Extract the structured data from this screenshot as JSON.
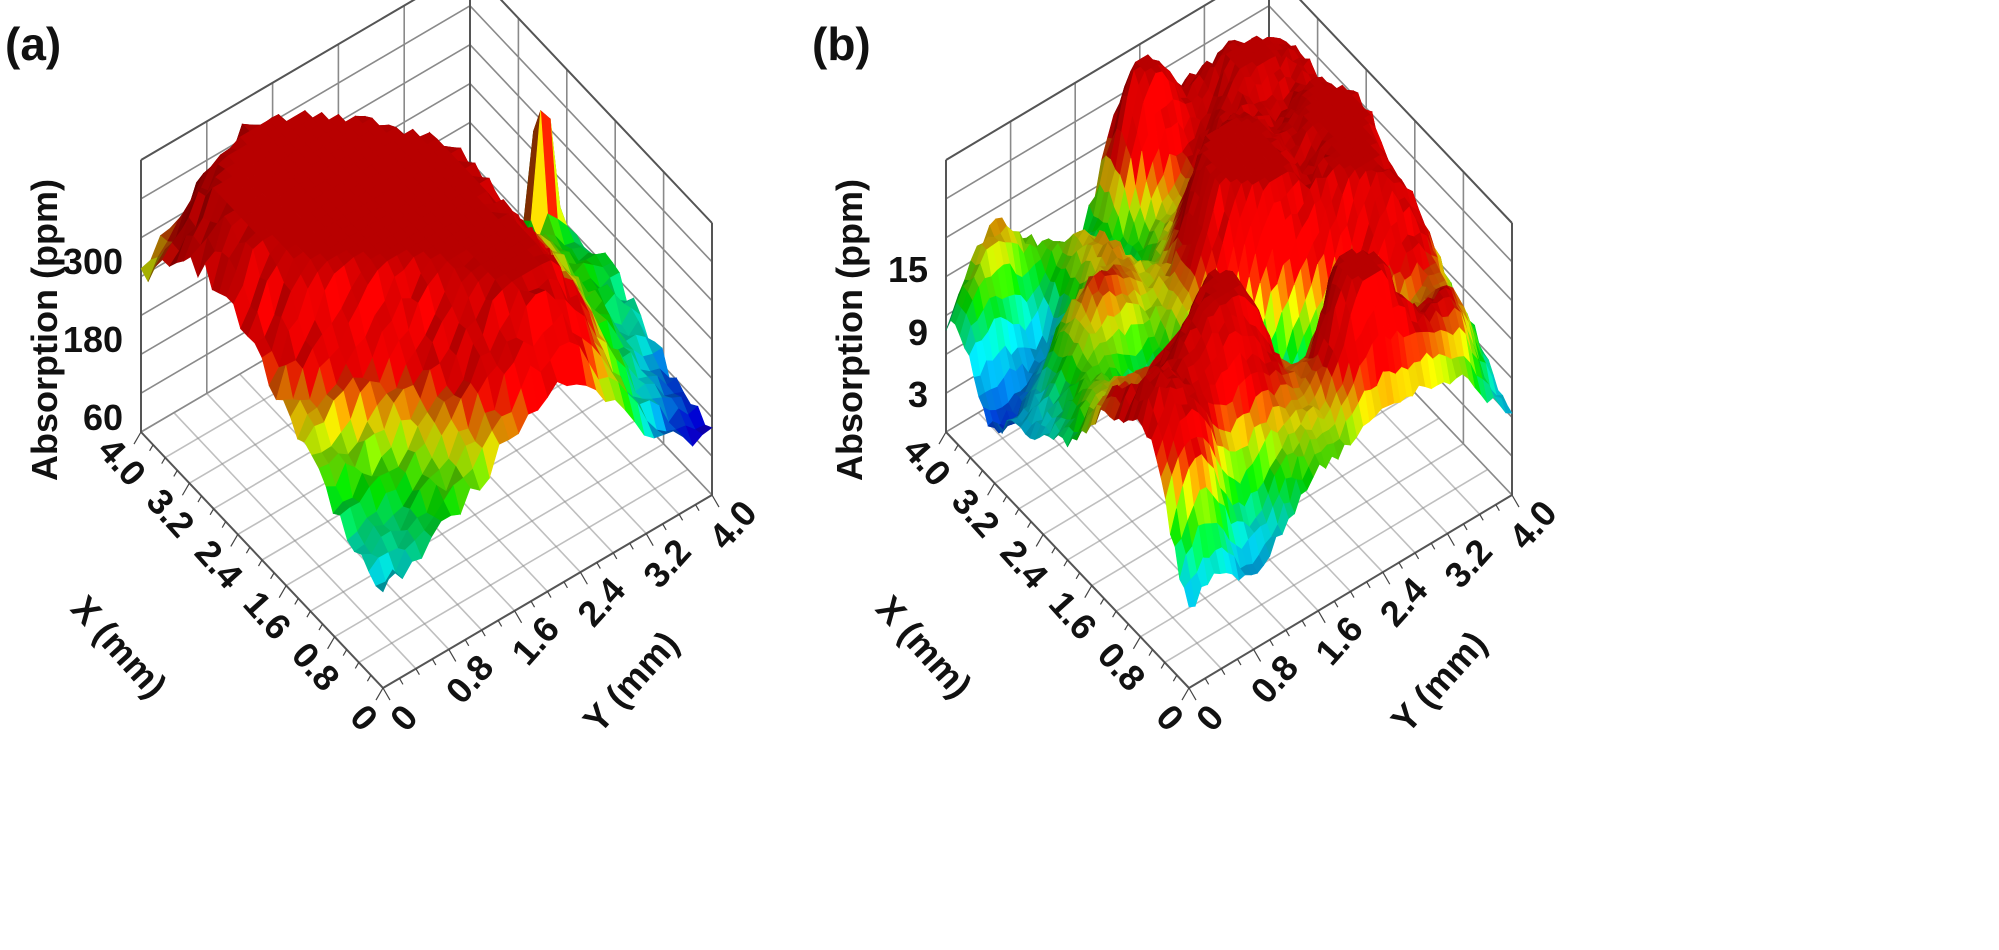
{
  "chart_data": [
    {
      "panel_label": "(a)",
      "type": "surface3d",
      "title": "",
      "x_axis": {
        "label": "X (mm)",
        "range": [
          0,
          4.0
        ],
        "ticks": [
          "0",
          "0.8",
          "1.6",
          "2.4",
          "3.2",
          "4.0"
        ]
      },
      "y_axis": {
        "label": "Y (mm)",
        "range": [
          0,
          4.0
        ],
        "ticks": [
          "0",
          "0.8",
          "1.6",
          "2.4",
          "3.2",
          "4.0"
        ]
      },
      "z_axis": {
        "label": "Absorption (ppm)",
        "ticks": [
          "60",
          "180",
          "300"
        ],
        "range": [
          0,
          400
        ]
      },
      "colormap": [
        "#3a0030",
        "#ff00ff",
        "#0000ff",
        "#00ffff",
        "#00ff00",
        "#ffff00",
        "#ff0000"
      ],
      "surface": {
        "base_level": 110,
        "variation": 120,
        "peak_value": 390,
        "peak_xy": [
          2.4,
          3.7
        ],
        "noise_scale": "coarse"
      }
    },
    {
      "panel_label": "(b)",
      "type": "surface3d",
      "title": "",
      "x_axis": {
        "label": "X (mm)",
        "range": [
          0,
          4.0
        ],
        "ticks": [
          "0",
          "0.8",
          "1.6",
          "2.4",
          "3.2",
          "4.0"
        ]
      },
      "y_axis": {
        "label": "Y (mm)",
        "range": [
          0,
          4.0
        ],
        "ticks": [
          "0",
          "0.8",
          "1.6",
          "2.4",
          "3.2",
          "4.0"
        ]
      },
      "z_axis": {
        "label": "Absorption (ppm)",
        "ticks": [
          "3",
          "9",
          "15"
        ],
        "range": [
          0,
          21
        ]
      },
      "colormap": [
        "#ff00ff",
        "#0000ff",
        "#00a0ff",
        "#00ffff",
        "#00ff00",
        "#ffff00",
        "#ff0000"
      ],
      "surface": {
        "base_level": 6,
        "variation": 4,
        "peak_value": 18,
        "noise_scale": "fine"
      }
    }
  ]
}
